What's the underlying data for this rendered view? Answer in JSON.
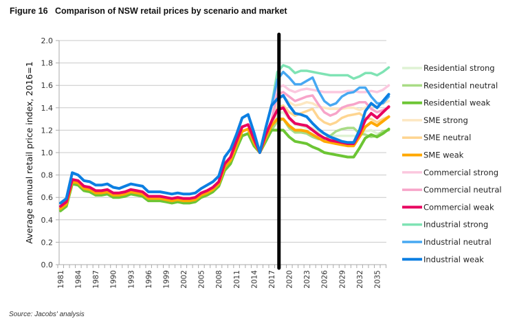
{
  "figure": {
    "title": "Figure 16   Comparison of NSW retail prices by scenario and market",
    "source": "Source: Jacobs' analysis"
  },
  "chart_data": {
    "type": "line",
    "title": "Comparison of NSW retail prices by scenario and market",
    "xlabel": "",
    "ylabel": "Average annual retail price index, 2016=1",
    "ylim": [
      0,
      2.0
    ],
    "yticks": [
      "0.0",
      "0.2",
      "0.4",
      "0.6",
      "0.8",
      "1.0",
      "1.2",
      "1.4",
      "1.6",
      "1.8",
      "2.0"
    ],
    "x_start": 1981,
    "x_end": 2036,
    "xtick_labels": [
      "1981",
      "1984",
      "1987",
      "1990",
      "1993",
      "1996",
      "1999",
      "2002",
      "2005",
      "2008",
      "2011",
      "2014",
      "2017",
      "2020",
      "2023",
      "2026",
      "2029",
      "2032",
      "2035"
    ],
    "grid": "horizontal",
    "legend_position": "right",
    "annotation": {
      "type": "vertical-line",
      "x": 2018.5,
      "color": "#000000",
      "label": ""
    },
    "series": [
      {
        "name": "Residential strong",
        "color": "#dff2d4",
        "width": "thin",
        "history": [
          0.48,
          0.52,
          0.72,
          0.71,
          0.66,
          0.65,
          0.62,
          0.62,
          0.63,
          0.6,
          0.6,
          0.61,
          0.63,
          0.62,
          0.61,
          0.57,
          0.57,
          0.57,
          0.56,
          0.55,
          0.56,
          0.55,
          0.55,
          0.56,
          0.6,
          0.62,
          0.65,
          0.7,
          0.84,
          0.9,
          1.03,
          1.15,
          1.17,
          1.06,
          1.0,
          1.1,
          1.2,
          1.35
        ],
        "forecast": [
          1.36,
          1.3,
          1.25,
          1.24,
          1.22,
          1.22,
          1.18,
          1.17,
          1.15,
          1.15,
          1.15,
          1.15,
          1.15,
          1.14,
          1.19,
          1.2,
          1.17,
          1.18,
          1.2
        ]
      },
      {
        "name": "Residential neutral",
        "color": "#a9dc86",
        "width": "thin",
        "history": [
          0.48,
          0.52,
          0.72,
          0.71,
          0.66,
          0.65,
          0.62,
          0.62,
          0.63,
          0.6,
          0.6,
          0.61,
          0.63,
          0.62,
          0.61,
          0.57,
          0.57,
          0.57,
          0.56,
          0.55,
          0.56,
          0.55,
          0.55,
          0.56,
          0.6,
          0.62,
          0.65,
          0.7,
          0.84,
          0.9,
          1.03,
          1.15,
          1.17,
          1.06,
          1.0,
          1.1,
          1.2,
          1.28
        ],
        "forecast": [
          1.3,
          1.22,
          1.18,
          1.18,
          1.17,
          1.14,
          1.12,
          1.12,
          1.15,
          1.19,
          1.21,
          1.22,
          1.22,
          1.17,
          1.16,
          1.14,
          1.15,
          1.19,
          1.2
        ]
      },
      {
        "name": "Residential weak",
        "color": "#6cc534",
        "width": "thick",
        "history": [
          0.48,
          0.52,
          0.72,
          0.71,
          0.66,
          0.65,
          0.62,
          0.62,
          0.63,
          0.6,
          0.6,
          0.61,
          0.63,
          0.62,
          0.61,
          0.57,
          0.57,
          0.57,
          0.56,
          0.55,
          0.56,
          0.55,
          0.55,
          0.56,
          0.6,
          0.62,
          0.65,
          0.7,
          0.84,
          0.9,
          1.03,
          1.15,
          1.17,
          1.06,
          1.0,
          1.1,
          1.2,
          1.2
        ],
        "forecast": [
          1.2,
          1.14,
          1.1,
          1.09,
          1.08,
          1.05,
          1.03,
          1.0,
          0.99,
          0.98,
          0.97,
          0.96,
          0.96,
          1.04,
          1.13,
          1.16,
          1.14,
          1.17,
          1.21
        ]
      },
      {
        "name": "SME strong",
        "color": "#fde7c2",
        "width": "thin",
        "history": [
          0.5,
          0.54,
          0.74,
          0.73,
          0.68,
          0.67,
          0.64,
          0.64,
          0.65,
          0.62,
          0.62,
          0.63,
          0.65,
          0.64,
          0.63,
          0.59,
          0.59,
          0.59,
          0.58,
          0.57,
          0.58,
          0.57,
          0.57,
          0.58,
          0.62,
          0.64,
          0.67,
          0.72,
          0.87,
          0.93,
          1.06,
          1.19,
          1.21,
          1.09,
          1.0,
          1.13,
          1.24,
          1.48
        ],
        "forecast": [
          1.5,
          1.45,
          1.42,
          1.43,
          1.45,
          1.44,
          1.41,
          1.4,
          1.39,
          1.39,
          1.39,
          1.4,
          1.4,
          1.38,
          1.4,
          1.42,
          1.41,
          1.44,
          1.46
        ]
      },
      {
        "name": "SME neutral",
        "color": "#fed591",
        "width": "thin",
        "history": [
          0.5,
          0.54,
          0.74,
          0.73,
          0.68,
          0.67,
          0.64,
          0.64,
          0.65,
          0.62,
          0.62,
          0.63,
          0.65,
          0.64,
          0.63,
          0.59,
          0.59,
          0.59,
          0.58,
          0.57,
          0.58,
          0.57,
          0.57,
          0.58,
          0.62,
          0.64,
          0.67,
          0.72,
          0.87,
          0.93,
          1.06,
          1.19,
          1.21,
          1.09,
          1.0,
          1.13,
          1.24,
          1.4
        ],
        "forecast": [
          1.42,
          1.36,
          1.33,
          1.35,
          1.37,
          1.39,
          1.31,
          1.27,
          1.25,
          1.27,
          1.31,
          1.33,
          1.34,
          1.35,
          1.31,
          1.3,
          1.27,
          1.3,
          1.32
        ]
      },
      {
        "name": "SME weak",
        "color": "#ffa800",
        "width": "thick",
        "history": [
          0.5,
          0.54,
          0.74,
          0.73,
          0.68,
          0.67,
          0.64,
          0.64,
          0.65,
          0.62,
          0.62,
          0.63,
          0.65,
          0.64,
          0.63,
          0.59,
          0.59,
          0.59,
          0.58,
          0.57,
          0.58,
          0.57,
          0.57,
          0.58,
          0.62,
          0.64,
          0.67,
          0.72,
          0.87,
          0.93,
          1.06,
          1.19,
          1.21,
          1.09,
          1.0,
          1.13,
          1.24,
          1.3
        ],
        "forecast": [
          1.3,
          1.24,
          1.2,
          1.2,
          1.19,
          1.16,
          1.13,
          1.1,
          1.09,
          1.08,
          1.07,
          1.06,
          1.06,
          1.14,
          1.23,
          1.27,
          1.24,
          1.28,
          1.32
        ]
      },
      {
        "name": "Commercial strong",
        "color": "#fbc8df",
        "width": "thin",
        "history": [
          0.52,
          0.56,
          0.76,
          0.75,
          0.7,
          0.69,
          0.66,
          0.66,
          0.67,
          0.64,
          0.64,
          0.65,
          0.67,
          0.66,
          0.65,
          0.61,
          0.61,
          0.61,
          0.6,
          0.59,
          0.6,
          0.59,
          0.59,
          0.6,
          0.64,
          0.66,
          0.69,
          0.74,
          0.9,
          0.96,
          1.1,
          1.23,
          1.25,
          1.12,
          1.0,
          1.16,
          1.28,
          1.58
        ],
        "forecast": [
          1.6,
          1.56,
          1.54,
          1.56,
          1.57,
          1.56,
          1.55,
          1.54,
          1.54,
          1.54,
          1.54,
          1.55,
          1.55,
          1.54,
          1.54,
          1.55,
          1.54,
          1.56,
          1.6
        ]
      },
      {
        "name": "Commercial neutral",
        "color": "#f7a4c9",
        "width": "thin",
        "history": [
          0.52,
          0.56,
          0.76,
          0.75,
          0.7,
          0.69,
          0.66,
          0.66,
          0.67,
          0.64,
          0.64,
          0.65,
          0.67,
          0.66,
          0.65,
          0.61,
          0.61,
          0.61,
          0.6,
          0.59,
          0.6,
          0.59,
          0.59,
          0.6,
          0.64,
          0.66,
          0.69,
          0.74,
          0.9,
          0.96,
          1.1,
          1.23,
          1.25,
          1.12,
          1.0,
          1.16,
          1.28,
          1.52
        ],
        "forecast": [
          1.54,
          1.5,
          1.46,
          1.48,
          1.5,
          1.51,
          1.43,
          1.36,
          1.33,
          1.35,
          1.4,
          1.42,
          1.43,
          1.45,
          1.45,
          1.39,
          1.36,
          1.38,
          1.4
        ]
      },
      {
        "name": "Commercial weak",
        "color": "#e8005f",
        "width": "thick",
        "history": [
          0.52,
          0.56,
          0.76,
          0.75,
          0.7,
          0.69,
          0.66,
          0.66,
          0.67,
          0.64,
          0.64,
          0.65,
          0.67,
          0.66,
          0.65,
          0.61,
          0.61,
          0.61,
          0.6,
          0.59,
          0.6,
          0.59,
          0.59,
          0.6,
          0.64,
          0.66,
          0.69,
          0.74,
          0.9,
          0.96,
          1.1,
          1.23,
          1.25,
          1.12,
          1.0,
          1.16,
          1.28,
          1.38
        ],
        "forecast": [
          1.4,
          1.31,
          1.26,
          1.25,
          1.24,
          1.2,
          1.16,
          1.13,
          1.11,
          1.1,
          1.09,
          1.08,
          1.08,
          1.17,
          1.29,
          1.35,
          1.31,
          1.36,
          1.41
        ]
      },
      {
        "name": "Industrial strong",
        "color": "#7fe3b4",
        "width": "thin",
        "history": [
          0.55,
          0.59,
          0.82,
          0.8,
          0.75,
          0.74,
          0.71,
          0.71,
          0.72,
          0.69,
          0.68,
          0.7,
          0.72,
          0.71,
          0.7,
          0.65,
          0.65,
          0.65,
          0.64,
          0.63,
          0.64,
          0.63,
          0.63,
          0.64,
          0.68,
          0.71,
          0.74,
          0.79,
          0.96,
          1.03,
          1.16,
          1.31,
          1.34,
          1.18,
          1.0,
          1.22,
          1.42,
          1.72
        ],
        "forecast": [
          1.78,
          1.76,
          1.71,
          1.73,
          1.73,
          1.72,
          1.71,
          1.7,
          1.69,
          1.69,
          1.69,
          1.69,
          1.66,
          1.68,
          1.71,
          1.71,
          1.69,
          1.72,
          1.76
        ]
      },
      {
        "name": "Industrial neutral",
        "color": "#47a8f2",
        "width": "thin",
        "history": [
          0.55,
          0.59,
          0.82,
          0.8,
          0.75,
          0.74,
          0.71,
          0.71,
          0.72,
          0.69,
          0.68,
          0.7,
          0.72,
          0.71,
          0.7,
          0.65,
          0.65,
          0.65,
          0.64,
          0.63,
          0.64,
          0.63,
          0.63,
          0.64,
          0.68,
          0.71,
          0.74,
          0.79,
          0.96,
          1.03,
          1.16,
          1.31,
          1.34,
          1.18,
          1.0,
          1.22,
          1.42,
          1.65
        ],
        "forecast": [
          1.72,
          1.67,
          1.61,
          1.61,
          1.64,
          1.67,
          1.55,
          1.46,
          1.42,
          1.44,
          1.5,
          1.53,
          1.54,
          1.58,
          1.58,
          1.5,
          1.44,
          1.44,
          1.5
        ]
      },
      {
        "name": "Industrial weak",
        "color": "#0c7fe2",
        "width": "thick",
        "history": [
          0.55,
          0.59,
          0.82,
          0.8,
          0.75,
          0.74,
          0.71,
          0.71,
          0.72,
          0.69,
          0.68,
          0.7,
          0.72,
          0.71,
          0.7,
          0.65,
          0.65,
          0.65,
          0.64,
          0.63,
          0.64,
          0.63,
          0.63,
          0.64,
          0.68,
          0.71,
          0.74,
          0.79,
          0.96,
          1.03,
          1.16,
          1.31,
          1.34,
          1.18,
          1.0,
          1.22,
          1.42,
          1.48
        ],
        "forecast": [
          1.51,
          1.42,
          1.35,
          1.34,
          1.32,
          1.26,
          1.21,
          1.17,
          1.14,
          1.12,
          1.1,
          1.09,
          1.09,
          1.2,
          1.37,
          1.44,
          1.4,
          1.46,
          1.52
        ]
      }
    ]
  }
}
